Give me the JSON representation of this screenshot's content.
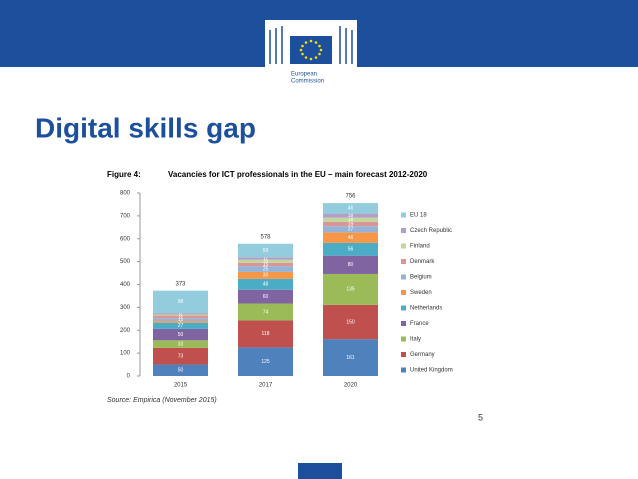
{
  "slide": {
    "logo_text": [
      "European",
      "Commission"
    ],
    "title": "Digital skills gap",
    "page_number": "5"
  },
  "chart_data": {
    "type": "stacked-bar",
    "figure_label": "Figure 4:",
    "title": "Vacancies for ICT professionals in the EU – main forecast 2012-2020",
    "categories": [
      "2015",
      "2017",
      "2020"
    ],
    "series": [
      {
        "name": "United Kingdom",
        "color": "#4f81bd",
        "values": [
          50,
          125,
          161
        ]
      },
      {
        "name": "Germany",
        "color": "#c0504d",
        "values": [
          73,
          118,
          150
        ]
      },
      {
        "name": "Italy",
        "color": "#9bbb59",
        "values": [
          33,
          74,
          135
        ]
      },
      {
        "name": "France",
        "color": "#8064a2",
        "values": [
          50,
          60,
          80
        ]
      },
      {
        "name": "Netherlands",
        "color": "#4bacc6",
        "values": [
          27,
          48,
          56
        ]
      },
      {
        "name": "Sweden",
        "color": "#f79646",
        "values": [
          7,
          30,
          46
        ]
      },
      {
        "name": "Belgium",
        "color": "#95b3d7",
        "values": [
          12,
          25,
          27
        ]
      },
      {
        "name": "Denmark",
        "color": "#d99694",
        "values": [
          12,
          15,
          19
        ]
      },
      {
        "name": "Finland",
        "color": "#c3d69b",
        "values": [
          5,
          13,
          18
        ]
      },
      {
        "name": "Czech Republic",
        "color": "#b2a1c7",
        "values": [
          6,
          11,
          18
        ]
      },
      {
        "name": "EU 18",
        "color": "#93cddd",
        "values": [
          98,
          59,
          46
        ]
      }
    ],
    "totals": [
      373,
      578,
      756
    ],
    "ylim": [
      0,
      800
    ],
    "yticks": [
      0,
      100,
      200,
      300,
      400,
      500,
      600,
      700,
      800
    ],
    "source": "Source: Empirica (November 2015)"
  }
}
